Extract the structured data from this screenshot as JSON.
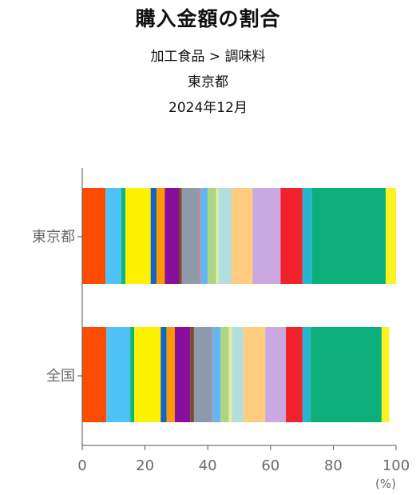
{
  "chart_data": {
    "type": "bar",
    "orientation": "horizontal",
    "stacked": true,
    "title": "購入金額の割合",
    "subtitles": [
      "加工食品 > 調味料",
      "東京都",
      "2024年12月"
    ],
    "xlabel": "(%)",
    "ylabel": "",
    "xlim": [
      0,
      100
    ],
    "xticks": [
      "0",
      "20",
      "40",
      "60",
      "80",
      "100"
    ],
    "categories": [
      "東京都",
      "全国"
    ],
    "segment_colors": [
      "#fd4c00",
      "#4fc3f7",
      "#13b57b",
      "#fff200",
      "#1565c0",
      "#ff9800",
      "#880e9c",
      "#7b4a2a",
      "#8e99ab",
      "#e57373",
      "#64b5f6",
      "#aed581",
      "#e6ee9c",
      "#b2dfdb",
      "#ffcc80",
      "#c9a9e0",
      "#f1222d",
      "#26b5d0",
      "#0caf7a",
      "#f8f321"
    ],
    "series_values": [
      [
        7.4,
        5.0,
        1.4,
        8.0,
        1.9,
        2.6,
        4.5,
        0.9,
        5.5,
        0.5,
        2.3,
        2.7,
        0.6,
        4.3,
        6.7,
        8.9,
        7.0,
        3.0,
        23.5,
        3.3
      ],
      [
        7.7,
        7.6,
        1.3,
        8.4,
        1.9,
        2.6,
        4.9,
        1.2,
        5.7,
        0.2,
        2.6,
        2.6,
        1.0,
        3.6,
        7.0,
        6.6,
        5.3,
        2.6,
        22.6,
        2.4
      ]
    ]
  }
}
